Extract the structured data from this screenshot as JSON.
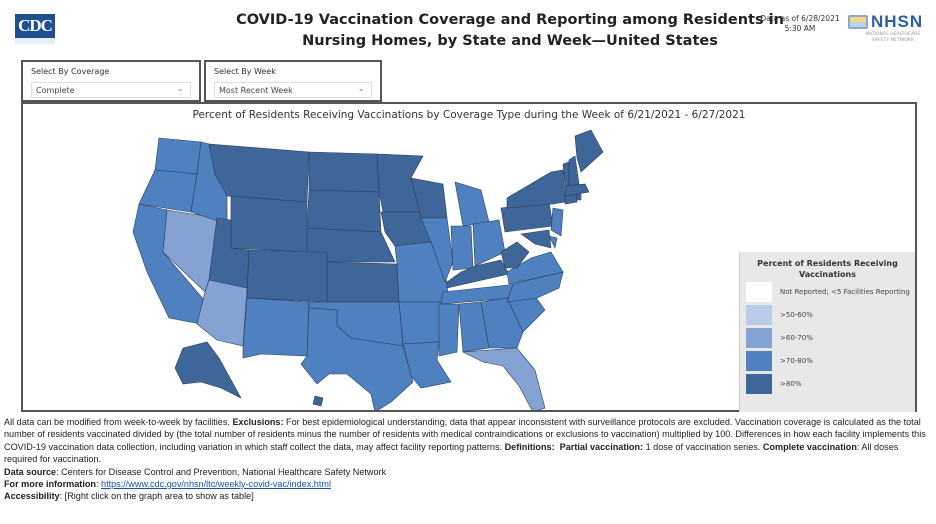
{
  "header": {
    "logo_text": "CDC",
    "title_line1": "COVID-19 Vaccination Coverage and Reporting among Residents in",
    "title_line2": "Nursing Homes, by State and Week—United States",
    "data_as_of_line1": "Data as of 6/28/2021",
    "data_as_of_line2": "5:30 AM",
    "nhsn_logo_text": "NHSN",
    "nhsn_sub_line1": "NATIONAL HEALTHCARE",
    "nhsn_sub_line2": "SAFETY NETWORK"
  },
  "filters": {
    "coverage": {
      "label": "Select By Coverage",
      "value": "Complete"
    },
    "week": {
      "label": "Select By Week",
      "value": "Most Recent Week"
    }
  },
  "map": {
    "title": "Percent of Residents Receiving Vaccinations by Coverage Type during the Week of 6/21/2021 - 6/27/2021",
    "legend": {
      "title_line1": "Percent of Residents Receiving",
      "title_line2": "Vaccinations",
      "items": [
        {
          "key": "none",
          "label": "Not Reported; <5 Facilities Reporting",
          "color": "#ffffff"
        },
        {
          "key": "c50",
          "label": ">50-60%",
          "color": "#b9cbe9"
        },
        {
          "key": "c60",
          "label": ">60-70%",
          "color": "#84a2d2"
        },
        {
          "key": "c70",
          "label": ">70-80%",
          "color": "#4f80c0"
        },
        {
          "key": "c80",
          "label": ">80%",
          "color": "#3f6699"
        }
      ]
    },
    "states": {
      "WA": "c70",
      "OR": "c70",
      "CA": "c70",
      "ID": "c70",
      "NV": "c60",
      "AZ": "c60",
      "MT": "c80",
      "WY": "c80",
      "UT": "c80",
      "CO": "c80",
      "NM": "c70",
      "ND": "c80",
      "SD": "c80",
      "NE": "c80",
      "KS": "c80",
      "OK": "c70",
      "TX": "c70",
      "MN": "c80",
      "IA": "c80",
      "MO": "c70",
      "AR": "c70",
      "LA": "c70",
      "WI": "c80",
      "IL": "c70",
      "MI": "c70",
      "IN": "c70",
      "OH": "c70",
      "KY": "c80",
      "TN": "c70",
      "MS": "c70",
      "AL": "c70",
      "GA": "c70",
      "FL": "c60",
      "SC": "c70",
      "NC": "c70",
      "VA": "c70",
      "WV": "c80",
      "PA": "c80",
      "NY": "c80",
      "NJ": "c70",
      "DE": "c70",
      "MD": "c80",
      "CT": "c80",
      "RI": "c80",
      "MA": "c80",
      "VT": "c80",
      "NH": "c80",
      "ME": "c80",
      "AK": "c80",
      "HI": "c80"
    }
  },
  "footnotes": {
    "p1_a": "All data can be modified from week-to-week by facilities. ",
    "p1_exclusions_label": "Exclusions:",
    "p1_b": " For best epidemiological understanding, data that appear inconsistent with surveillance protocols are excluded. Vaccination coverage is calculated as the total number of residents vaccinated divided by (the total number of residents minus the number of residents with medical contraindications or exclusions to vaccination) multiplied by 100. Differences in how each facility implements this COVID-19 vaccination data collection, including variation in which staff collect the data, may affect facility reporting patterns. ",
    "definitions_label": "Definitions:",
    "partial_label": "Partial vaccination:",
    "partial_text": " 1 dose of vaccination series. ",
    "complete_label": "Complete vaccination",
    "complete_text": ":  All doses required for vaccination.",
    "source_label": "Data source",
    "source_text": ": Centers for Disease Control and Prevention, National Healthcare Safety Network",
    "more_label": "For more information",
    "more_sep": ": ",
    "more_link": "https://www.cdc.gov/nhsn/ltc/weekly-covid-vac/index.html",
    "access_label": "Accessibility",
    "access_text": ": [Right click on the graph area to show as table]"
  }
}
